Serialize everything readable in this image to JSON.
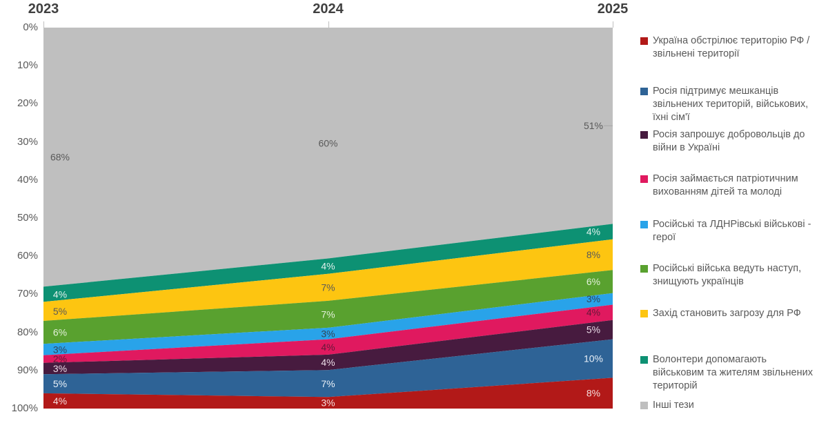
{
  "chart_data": {
    "type": "area",
    "subtype": "stacked-100-percent",
    "x_labels": [
      "2023",
      "2024",
      "2025"
    ],
    "y_ticks": [
      "0%",
      "10%",
      "20%",
      "30%",
      "40%",
      "50%",
      "60%",
      "70%",
      "80%",
      "90%",
      "100%"
    ],
    "y_axis": {
      "min": 0,
      "max": 100,
      "inverted": true,
      "unit": "%"
    },
    "grid": false,
    "legend_position": "right",
    "data_label_suffix": "%",
    "series": [
      {
        "name": "Україна обстрілює територію РФ / звільнені території",
        "color": "#B21918",
        "label_color": "#F4DEDD",
        "values": [
          4,
          3,
          8
        ]
      },
      {
        "name": "Росія підтримує мешканців звільнених територій, військових, їхні сім'ї",
        "color": "#2E6396",
        "label_color": "#EAF1F8",
        "values": [
          5,
          7,
          10
        ]
      },
      {
        "name": "Росія запрошує добровольців до війни в Україні",
        "color": "#471B3F",
        "label_color": "#EBDCE7",
        "values": [
          3,
          4,
          5
        ]
      },
      {
        "name": "Росія займається патріотичним вихованням дітей та молоді",
        "color": "#E0195F",
        "label_color": "#641838",
        "values": [
          2,
          4,
          4
        ]
      },
      {
        "name": "Російські та ЛДНРівські військові - герої",
        "color": "#29A3E9",
        "label_color": "#324459",
        "values": [
          3,
          3,
          3
        ]
      },
      {
        "name": "Російські війська ведуть наступ, знищують українців",
        "color": "#59A12F",
        "label_color": "#E2F0D9",
        "values": [
          6,
          7,
          6
        ]
      },
      {
        "name": "Захід становить загрозу для РФ",
        "color": "#FDC511",
        "label_color": "#595959",
        "values": [
          5,
          7,
          8
        ]
      },
      {
        "name": "Волонтери допомагають військовим та жителям звільнених територій",
        "color": "#0D9173",
        "label_color": "#E2F1ED",
        "values": [
          4,
          4,
          4
        ]
      },
      {
        "name": "Інші тези",
        "color": "#BFBFBF",
        "label_color": "#595959",
        "values": [
          68,
          60,
          51
        ]
      }
    ]
  }
}
